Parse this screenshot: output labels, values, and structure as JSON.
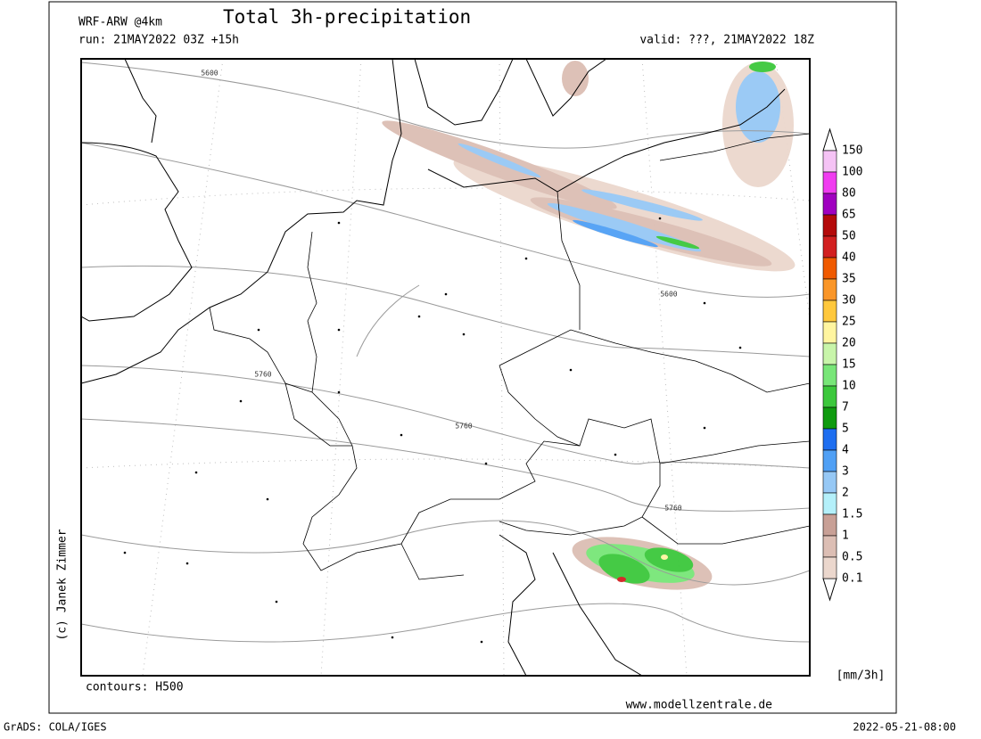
{
  "header": {
    "model": "WRF-ARW @4km",
    "title": "Total 3h-precipitation",
    "run": "run: 21MAY2022 03Z +15h",
    "valid": "valid: ???, 21MAY2022 18Z"
  },
  "map": {
    "contour_labels": [
      "5600",
      "5600",
      "5760",
      "5760",
      "5760"
    ]
  },
  "legend": {
    "levels": [
      "150",
      "100",
      "80",
      "65",
      "50",
      "40",
      "35",
      "30",
      "25",
      "20",
      "15",
      "10",
      "7",
      "5",
      "4",
      "3",
      "2",
      "1.5",
      "1",
      "0.5",
      "0.1"
    ],
    "colors": [
      "#f5c3f5",
      "#f03cf0",
      "#a000c0",
      "#b40a0a",
      "#d22020",
      "#f05a00",
      "#fa9628",
      "#ffc83c",
      "#fff5a0",
      "#c8f5aa",
      "#78e678",
      "#3cc83c",
      "#0f9b0f",
      "#1e6ef0",
      "#50a0f5",
      "#96c8f5",
      "#b4f0fa",
      "#c8a096",
      "#dcbeb4",
      "#ebd7cd"
    ],
    "unit": "[mm/3h]"
  },
  "footer": {
    "contours": "contours: H500",
    "website": "www.modellzentrale.de",
    "copyright": "(c) Janek Zimmer",
    "grads": "GrADS: COLA/IGES",
    "timestamp": "2022-05-21-08:00"
  }
}
